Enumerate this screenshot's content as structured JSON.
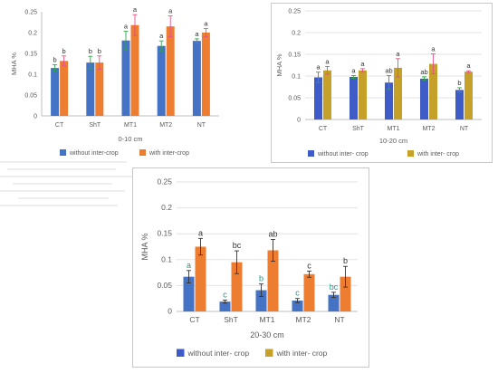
{
  "chart_data": [
    {
      "type": "bar",
      "title": "",
      "xlabel": "0-10 cm",
      "ylabel": "MHA %",
      "ylim": [
        0,
        0.25
      ],
      "yticks": [
        "0",
        "0.05",
        "0.1",
        "0.15",
        "0.2",
        "0.25"
      ],
      "categories": [
        "CT",
        "ShT",
        "MT1",
        "MT2",
        "NT"
      ],
      "legend_position": "bottom",
      "series": [
        {
          "name": "without inter-crop",
          "color": "#4472c4",
          "values": [
            0.115,
            0.128,
            0.181,
            0.168,
            0.18
          ],
          "errors": [
            0.008,
            0.015,
            0.022,
            0.012,
            0.005
          ],
          "labels": [
            "b",
            "b",
            "a",
            "a",
            "a"
          ],
          "error_color": "#2ea84a"
        },
        {
          "name": "with inter-crop",
          "color": "#ed7d31",
          "values": [
            0.132,
            0.128,
            0.218,
            0.215,
            0.2
          ],
          "errors": [
            0.012,
            0.016,
            0.025,
            0.025,
            0.01
          ],
          "labels": [
            "b",
            "b",
            "a",
            "a",
            "a"
          ],
          "error_color": "#e8508a"
        }
      ]
    },
    {
      "type": "bar",
      "title": "",
      "xlabel": "10-20 cm",
      "ylabel": "MHA %",
      "ylim": [
        0,
        0.25
      ],
      "yticks": [
        "0",
        "0.05",
        "0.1",
        "0.15",
        "0.2",
        "0.25"
      ],
      "categories": [
        "CT",
        "ShT",
        "MT1",
        "MT2",
        "NT"
      ],
      "legend_position": "bottom",
      "series": [
        {
          "name": "without inter- crop",
          "color": "#3f5bc8",
          "values": [
            0.097,
            0.098,
            0.085,
            0.094,
            0.068
          ],
          "errors": [
            0.012,
            0.003,
            0.016,
            0.004,
            0.005
          ],
          "labels": [
            "a",
            "a",
            "ab",
            "ab",
            "b"
          ],
          "error_color": "#2ea84a"
        },
        {
          "name": "with inter- crop",
          "color": "#c5a12a",
          "values": [
            0.113,
            0.113,
            0.119,
            0.128,
            0.11
          ],
          "errors": [
            0.009,
            0.004,
            0.021,
            0.023,
            0.002
          ],
          "labels": [
            "a",
            "a",
            "a",
            "a",
            "a"
          ],
          "error_color": "#e8508a"
        }
      ]
    },
    {
      "type": "bar",
      "title": "",
      "xlabel": "20-30 cm",
      "ylabel": "MHA %",
      "ylim": [
        0,
        0.25
      ],
      "yticks": [
        "0",
        "0.05",
        "0.1",
        "0.15",
        "0.2",
        "0.25"
      ],
      "categories": [
        "CT",
        "ShT",
        "MT1",
        "MT2",
        "NT"
      ],
      "legend_position": "bottom",
      "series": [
        {
          "name": "without inter- crop",
          "color": "#4472c4",
          "legend_color": "#3f5bc8",
          "values": [
            0.067,
            0.019,
            0.041,
            0.021,
            0.032
          ],
          "errors": [
            0.012,
            0.003,
            0.012,
            0.004,
            0.005
          ],
          "labels": [
            "a",
            "c",
            "b",
            "c",
            "bc"
          ],
          "error_color": "#333333"
        },
        {
          "name": "with inter- crop",
          "color": "#ed7d31",
          "legend_color": "#c5a12a",
          "values": [
            0.125,
            0.095,
            0.118,
            0.072,
            0.067
          ],
          "errors": [
            0.016,
            0.022,
            0.021,
            0.006,
            0.02
          ],
          "labels": [
            "a",
            "bc",
            "ab",
            "c",
            "b"
          ],
          "error_color": "#333333"
        }
      ]
    }
  ]
}
